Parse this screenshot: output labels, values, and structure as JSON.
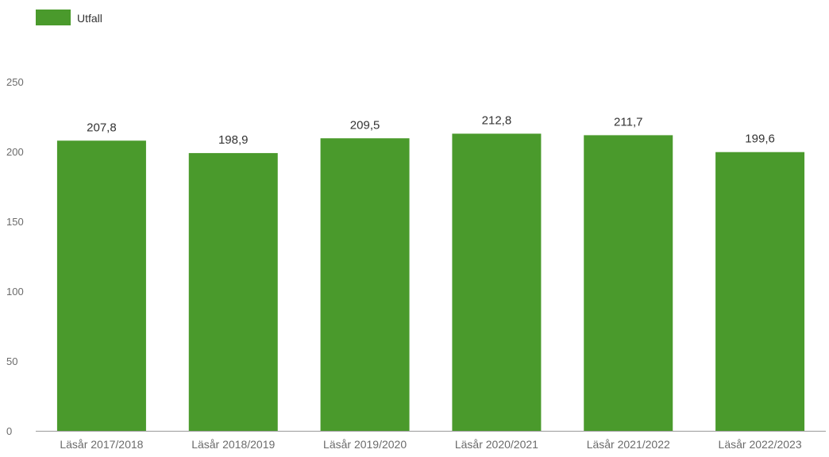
{
  "chart_data": {
    "type": "bar",
    "categories": [
      "Läsår 2017/2018",
      "Läsår 2018/2019",
      "Läsår 2019/2020",
      "Läsår 2020/2021",
      "Läsår 2021/2022",
      "Läsår 2022/2023"
    ],
    "series": [
      {
        "name": "Utfall",
        "values": [
          207.8,
          198.9,
          209.5,
          212.8,
          211.7,
          199.6
        ],
        "value_labels": [
          "207,8",
          "198,9",
          "209,5",
          "212,8",
          "211,7",
          "199,6"
        ],
        "color": "#4a9a2c"
      }
    ],
    "ylim": [
      0,
      250
    ],
    "yticks": [
      0,
      50,
      100,
      150,
      200,
      250
    ],
    "ytick_labels": [
      "0",
      "50",
      "100",
      "150",
      "200",
      "250"
    ],
    "grid": false,
    "legend_position": "top-left"
  },
  "colors": {
    "bar": "#4a9a2c",
    "axis_text": "#6b6b6b",
    "value_text": "#333333",
    "axis_line": "#9a9a9a"
  }
}
